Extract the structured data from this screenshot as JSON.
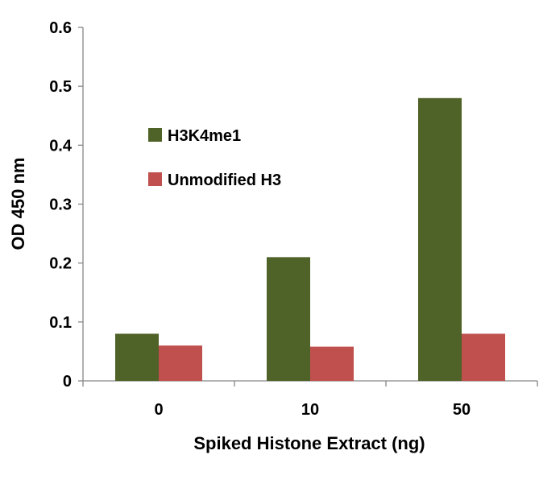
{
  "chart_data": {
    "type": "bar",
    "title": "",
    "xlabel": "Spiked Histone Extract (ng)",
    "ylabel": "OD 450 nm",
    "categories": [
      "0",
      "10",
      "50"
    ],
    "ylim": [
      0,
      0.6
    ],
    "yticks": [
      "0",
      "0.1",
      "0.2",
      "0.3",
      "0.4",
      "0.5",
      "0.6"
    ],
    "grid": false,
    "legend_position": "upper-left inside",
    "series": [
      {
        "name": "H3K4me1",
        "color": "#4f6228",
        "values": [
          0.08,
          0.21,
          0.48
        ]
      },
      {
        "name": "Unmodified H3",
        "color": "#c0504d",
        "values": [
          0.06,
          0.058,
          0.08
        ]
      }
    ]
  }
}
